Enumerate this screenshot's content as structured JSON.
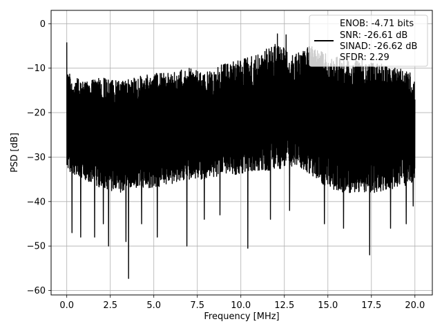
{
  "chart_data": {
    "type": "line",
    "title": "",
    "xlabel": "Frequency [MHz]",
    "ylabel": "PSD [dB]",
    "xlim": [
      -0.9,
      21.0
    ],
    "ylim": [
      -61.0,
      3.0
    ],
    "xticks": [
      0.0,
      2.5,
      5.0,
      7.5,
      10.0,
      12.5,
      15.0,
      17.5,
      20.0
    ],
    "xtick_labels": [
      "0.0",
      "2.5",
      "5.0",
      "7.5",
      "10.0",
      "12.5",
      "15.0",
      "17.5",
      "20.0"
    ],
    "yticks": [
      0,
      -10,
      -20,
      -30,
      -40,
      -50,
      -60
    ],
    "ytick_labels": [
      "0",
      "−10",
      "−20",
      "−30",
      "−40",
      "−50",
      "−60"
    ],
    "grid": true,
    "legend_position": "upper-right",
    "legend_lines": [
      "ENOB: -4.71 bits",
      "SNR: -26.61 dB",
      "SINAD: -26.62 dB",
      "SFDR: 2.29"
    ],
    "series": [
      {
        "color": "#000000",
        "x_range": [
          0.0,
          20.0
        ],
        "envelope": {
          "x": [
            0,
            1,
            2,
            3,
            4,
            5,
            6,
            7,
            8,
            9,
            10,
            11,
            12,
            13,
            14,
            15,
            16,
            17,
            18,
            19,
            20
          ],
          "upper": [
            -11,
            -13,
            -12,
            -13,
            -12,
            -11,
            -11,
            -10,
            -11,
            -9,
            -8,
            -7,
            -4,
            -7,
            -5,
            -7,
            -8,
            -8,
            -9,
            -10,
            -11
          ],
          "typical_low": [
            -33,
            -35,
            -37,
            -38,
            -37,
            -37,
            -36,
            -35,
            -35,
            -34,
            -34,
            -33,
            -33,
            -32,
            -34,
            -37,
            -38,
            -38,
            -38,
            -37,
            -36
          ]
        },
        "peaks": [
          {
            "x": 0.0,
            "y": -4.2
          },
          {
            "x": 12.1,
            "y": -2.3
          },
          {
            "x": 12.6,
            "y": -2.5
          }
        ],
        "dips": [
          {
            "x": 0.3,
            "y": -47
          },
          {
            "x": 0.8,
            "y": -48
          },
          {
            "x": 1.6,
            "y": -48
          },
          {
            "x": 2.1,
            "y": -45
          },
          {
            "x": 2.4,
            "y": -50
          },
          {
            "x": 3.4,
            "y": -49
          },
          {
            "x": 3.55,
            "y": -57.3
          },
          {
            "x": 4.3,
            "y": -45
          },
          {
            "x": 5.2,
            "y": -48
          },
          {
            "x": 6.9,
            "y": -50
          },
          {
            "x": 7.9,
            "y": -44
          },
          {
            "x": 8.8,
            "y": -43
          },
          {
            "x": 10.4,
            "y": -50.5
          },
          {
            "x": 11.7,
            "y": -44
          },
          {
            "x": 12.8,
            "y": -42
          },
          {
            "x": 14.8,
            "y": -45
          },
          {
            "x": 15.9,
            "y": -46
          },
          {
            "x": 17.4,
            "y": -52
          },
          {
            "x": 18.6,
            "y": -46
          },
          {
            "x": 19.5,
            "y": -45
          },
          {
            "x": 19.9,
            "y": -41
          }
        ]
      }
    ]
  }
}
